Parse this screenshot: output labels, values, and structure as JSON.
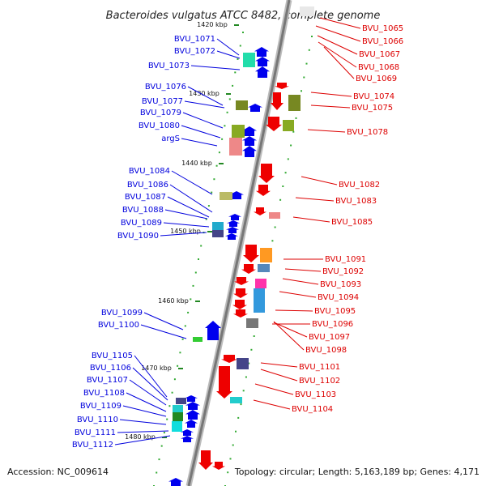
{
  "title": "Bacteroides vulgatus ATCC 8482, complete genome",
  "footer": {
    "accession": "Accession: NC_009614",
    "topology": "Topology: circular; Length: 5,163,189 bp; Genes: 4,171"
  },
  "colors": {
    "backbone": "#888888",
    "forward_label": "#0000dd",
    "reverse_label": "#dd0000",
    "forward_gene": "#0000ee",
    "reverse_gene": "#ee0000",
    "tick": "#228822"
  },
  "ticks": [
    "1420 kbp",
    "1430 kbp",
    "1440 kbp",
    "1450 kbp",
    "1460 kbp",
    "1470 kbp",
    "1480 kbp"
  ],
  "left_labels": [
    "BVU_1071",
    "BVU_1072",
    "BVU_1073",
    "BVU_1076",
    "BVU_1077",
    "BVU_1079",
    "BVU_1080",
    "argS",
    "BVU_1084",
    "BVU_1086",
    "BVU_1087",
    "BVU_1088",
    "BVU_1089",
    "BVU_1090",
    "BVU_1099",
    "BVU_1100",
    "BVU_1105",
    "BVU_1106",
    "BVU_1107",
    "BVU_1108",
    "BVU_1109",
    "BVU_1110",
    "BVU_1111",
    "BVU_1112"
  ],
  "right_labels": [
    "BVU_1065",
    "BVU_1066",
    "BVU_1067",
    "BVU_1068",
    "BVU_1069",
    "BVU_1074",
    "BVU_1075",
    "BVU_1078",
    "BVU_1082",
    "BVU_1083",
    "BVU_1085",
    "BVU_1091",
    "BVU_1092",
    "BVU_1093",
    "BVU_1094",
    "BVU_1095",
    "BVU_1096",
    "BVU_1097",
    "BVU_1098",
    "BVU_1101",
    "BVU_1102",
    "BVU_1103",
    "BVU_1104"
  ]
}
